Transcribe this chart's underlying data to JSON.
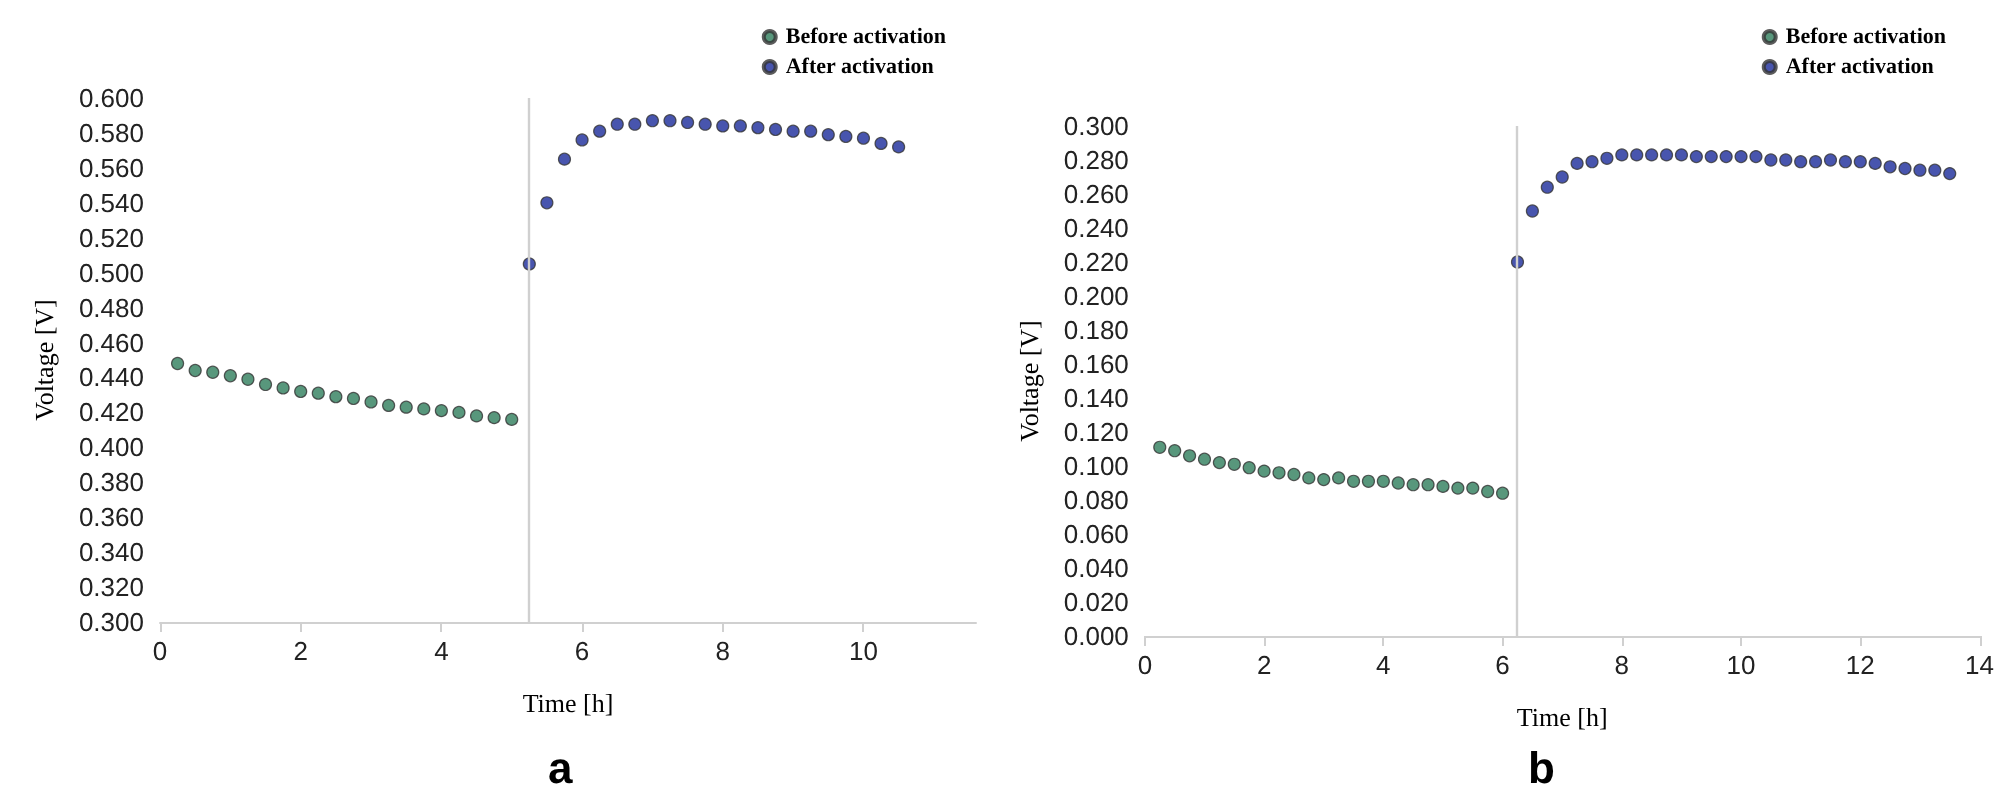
{
  "chart_data": [
    {
      "type": "scatter",
      "xlabel": "Time [h]",
      "ylabel": "Voltage [V]",
      "annotations": [
        "a"
      ],
      "marker": "circle",
      "grid": false,
      "legend": "top right",
      "xlim": [
        0,
        11.6
      ],
      "xticks": [
        0,
        2,
        4,
        6,
        8,
        10
      ],
      "ylim": [
        0.3,
        0.6
      ],
      "yticks": [
        {
          "value": 0.3,
          "label": "0.300"
        },
        {
          "value": 0.32,
          "label": "0.320"
        },
        {
          "value": 0.34,
          "label": "0.340"
        },
        {
          "value": 0.36,
          "label": "0.360"
        },
        {
          "value": 0.38,
          "label": "0.380"
        },
        {
          "value": 0.4,
          "label": "0.400"
        },
        {
          "value": 0.42,
          "label": "0.420"
        },
        {
          "value": 0.44,
          "label": "0.440"
        },
        {
          "value": 0.46,
          "label": "0.460"
        },
        {
          "value": 0.48,
          "label": "0.480"
        },
        {
          "value": 0.5,
          "label": "0.500"
        },
        {
          "value": 0.52,
          "label": "0.520"
        },
        {
          "value": 0.54,
          "label": "0.540"
        },
        {
          "value": 0.56,
          "label": "0.560"
        },
        {
          "value": 0.58,
          "label": "0.580"
        },
        {
          "value": 0.6,
          "label": "0.600"
        }
      ],
      "ref_lines": [
        {
          "axis": "x",
          "value": 5.25,
          "label": null,
          "color": "#d0d0d0"
        }
      ],
      "series": [
        {
          "name": "Before activation",
          "color": "#2e7d5b",
          "x": [
            0.25,
            0.5,
            0.75,
            1,
            1.25,
            1.5,
            1.75,
            2,
            2.25,
            2.5,
            2.75,
            3,
            3.25,
            3.5,
            3.75,
            4,
            4.25,
            4.5,
            4.75,
            5
          ],
          "values": [
            0.448,
            0.444,
            0.443,
            0.441,
            0.439,
            0.436,
            0.434,
            0.432,
            0.431,
            0.429,
            0.428,
            0.426,
            0.424,
            0.423,
            0.422,
            0.421,
            0.42,
            0.418,
            0.417,
            0.416
          ]
        },
        {
          "name": "After activation",
          "color": "#1a2a9a",
          "x": [
            5.25,
            5.5,
            5.75,
            6,
            6.25,
            6.5,
            6.75,
            7,
            7.25,
            7.5,
            7.75,
            8,
            8.25,
            8.5,
            8.75,
            9,
            9.25,
            9.5,
            9.75,
            10,
            10.25,
            10.5
          ],
          "values": [
            0.505,
            0.54,
            0.565,
            0.576,
            0.581,
            0.585,
            0.585,
            0.587,
            0.587,
            0.586,
            0.585,
            0.584,
            0.584,
            0.583,
            0.582,
            0.581,
            0.581,
            0.579,
            0.578,
            0.577,
            0.574,
            0.572
          ]
        }
      ]
    },
    {
      "type": "scatter",
      "xlabel": "Time [h]",
      "ylabel": "Voltage [V]",
      "annotations": [
        "b"
      ],
      "marker": "circle",
      "grid": false,
      "legend": "top right",
      "xlim": [
        0,
        14
      ],
      "xticks": [
        0,
        2,
        4,
        6,
        8,
        10,
        12,
        14
      ],
      "ylim": [
        0,
        0.3
      ],
      "yticks": [
        {
          "value": 0,
          "label": "0.000"
        },
        {
          "value": 0.02,
          "label": "0.020"
        },
        {
          "value": 0.04,
          "label": "0.040"
        },
        {
          "value": 0.06,
          "label": "0.060"
        },
        {
          "value": 0.08,
          "label": "0.080"
        },
        {
          "value": 0.1,
          "label": "0.100"
        },
        {
          "value": 0.12,
          "label": "0.120"
        },
        {
          "value": 0.14,
          "label": "0.140"
        },
        {
          "value": 0.16,
          "label": "0.160"
        },
        {
          "value": 0.18,
          "label": "0.180"
        },
        {
          "value": 0.2,
          "label": "0.200"
        },
        {
          "value": 0.22,
          "label": "0.220"
        },
        {
          "value": 0.24,
          "label": "0.240"
        },
        {
          "value": 0.26,
          "label": "0.260"
        },
        {
          "value": 0.28,
          "label": "0.280"
        },
        {
          "value": 0.3,
          "label": "0.300"
        }
      ],
      "ref_lines": [
        {
          "axis": "x",
          "value": 6.25,
          "label": null,
          "color": "#d0d0d0"
        }
      ],
      "series": [
        {
          "name": "Before activation",
          "color": "#2e7d5b",
          "x": [
            0.25,
            0.5,
            0.75,
            1,
            1.25,
            1.5,
            1.75,
            2,
            2.25,
            2.5,
            2.75,
            3,
            3.25,
            3.5,
            3.75,
            4,
            4.25,
            4.5,
            4.75,
            5,
            5.25,
            5.5,
            5.75,
            6
          ],
          "values": [
            0.111,
            0.109,
            0.106,
            0.104,
            0.102,
            0.101,
            0.099,
            0.097,
            0.096,
            0.095,
            0.093,
            0.092,
            0.093,
            0.091,
            0.091,
            0.091,
            0.09,
            0.089,
            0.089,
            0.088,
            0.087,
            0.087,
            0.085,
            0.084
          ]
        },
        {
          "name": "After activation",
          "color": "#1a2a9a",
          "x": [
            6.25,
            6.5,
            6.75,
            7,
            7.25,
            7.5,
            7.75,
            8,
            8.25,
            8.5,
            8.75,
            9,
            9.25,
            9.5,
            9.75,
            10,
            10.25,
            10.5,
            10.75,
            11,
            11.25,
            11.5,
            11.75,
            12,
            12.25,
            12.5,
            12.75,
            13,
            13.25,
            13.5
          ],
          "values": [
            0.22,
            0.25,
            0.264,
            0.27,
            0.278,
            0.279,
            0.281,
            0.283,
            0.283,
            0.283,
            0.283,
            0.283,
            0.282,
            0.282,
            0.282,
            0.282,
            0.282,
            0.28,
            0.28,
            0.279,
            0.279,
            0.28,
            0.279,
            0.279,
            0.278,
            0.276,
            0.275,
            0.274,
            0.274,
            0.272
          ]
        }
      ]
    }
  ]
}
